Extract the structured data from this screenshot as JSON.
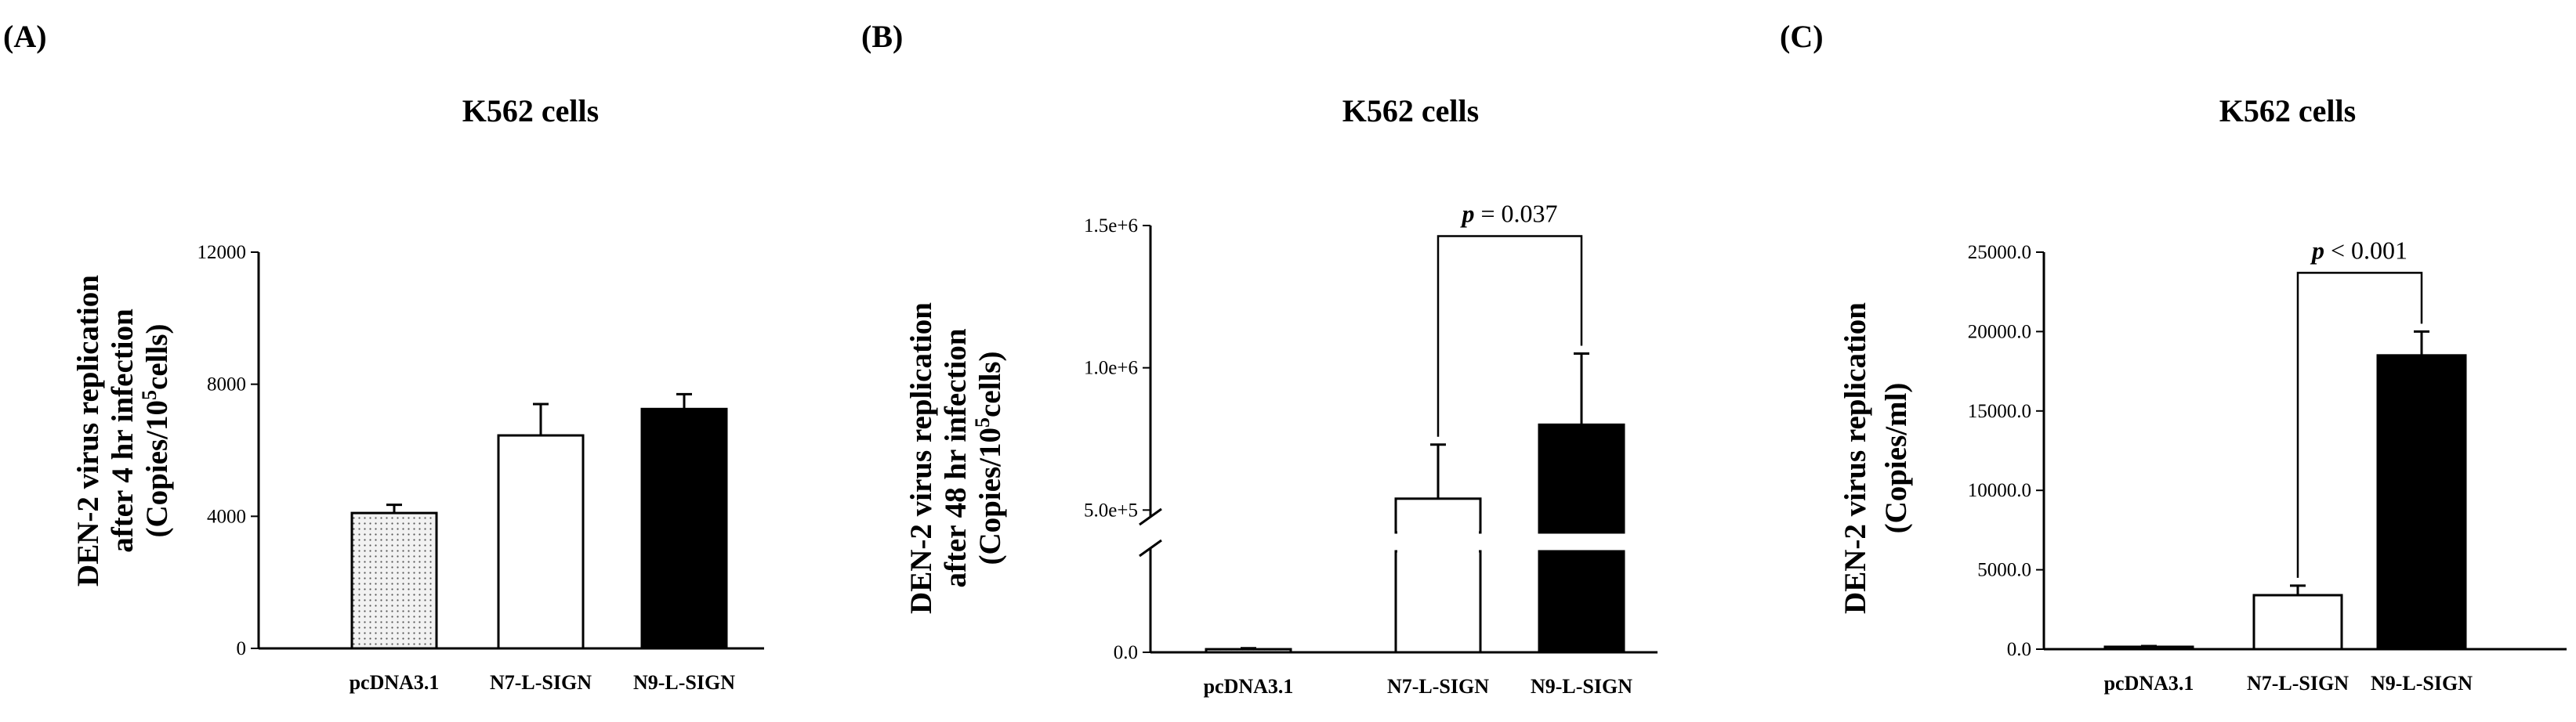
{
  "colors": {
    "background": "#ffffff",
    "axis": "#000000",
    "bar_dotted_fill": "#f2f2f2",
    "bar_dot": "#555555",
    "bar_white": "#ffffff",
    "bar_black": "#000000"
  },
  "chart_data": [
    {
      "panel": "(A)",
      "type": "bar",
      "title": "K562 cells",
      "ylabel_lines": [
        "DEN-2 virus replication",
        "after 4 hr infection",
        "(Copies/10",
        "5",
        "cells)"
      ],
      "xlabel": "",
      "categories": [
        "pcDNA3.1",
        "N7-L-SIGN",
        "N9-L-SIGN"
      ],
      "values": [
        4100,
        6450,
        7250
      ],
      "errors": [
        250,
        950,
        450
      ],
      "fills": [
        "dotted",
        "white",
        "black"
      ],
      "ylim": [
        0,
        12000
      ],
      "yticks": [
        0,
        4000,
        8000,
        12000
      ],
      "ytick_labels": [
        "0",
        "4000",
        "8000",
        "12000"
      ],
      "grid": false,
      "annotation": null
    },
    {
      "panel": "(B)",
      "type": "bar",
      "title": "K562 cells",
      "ylabel_lines": [
        "DEN-2 virus replication",
        "after 48 hr infection",
        "(Copies/10",
        "5",
        "cells)"
      ],
      "xlabel": "",
      "categories": [
        "pcDNA3.1",
        "N7-L-SIGN",
        "N9-L-SIGN"
      ],
      "values": [
        12000,
        540000,
        800000
      ],
      "errors": [
        4000,
        190000,
        250000
      ],
      "fills": [
        "dotted",
        "white",
        "black"
      ],
      "ylim": [
        0,
        1500000
      ],
      "yticks": [
        0,
        500000,
        1000000,
        1500000
      ],
      "ytick_labels": [
        "0.0",
        "5.0e+5",
        "1.0e+6",
        "1.5e+6"
      ],
      "axis_break": true,
      "grid": false,
      "annotation": {
        "p_letter": "p",
        "text": " = 0.037",
        "between": [
          1,
          2
        ]
      }
    },
    {
      "panel": "(C)",
      "type": "bar",
      "title": "K562 cells",
      "ylabel_lines": [
        "DEN-2 virus replication",
        "(Copies/ml)"
      ],
      "xlabel": "",
      "categories": [
        "pcDNA3.1",
        "N7-L-SIGN",
        "N9-L-SIGN"
      ],
      "values": [
        150,
        3400,
        18500
      ],
      "errors": [
        50,
        600,
        1500
      ],
      "fills": [
        "dotted",
        "white",
        "black"
      ],
      "ylim": [
        0,
        25000
      ],
      "yticks": [
        0,
        5000,
        10000,
        15000,
        20000,
        25000
      ],
      "ytick_labels": [
        "0.0",
        "5000.0",
        "10000.0",
        "15000.0",
        "20000.0",
        "25000.0"
      ],
      "grid": false,
      "annotation": {
        "p_letter": "p",
        "text": " < 0.001",
        "between": [
          1,
          2
        ]
      }
    }
  ]
}
